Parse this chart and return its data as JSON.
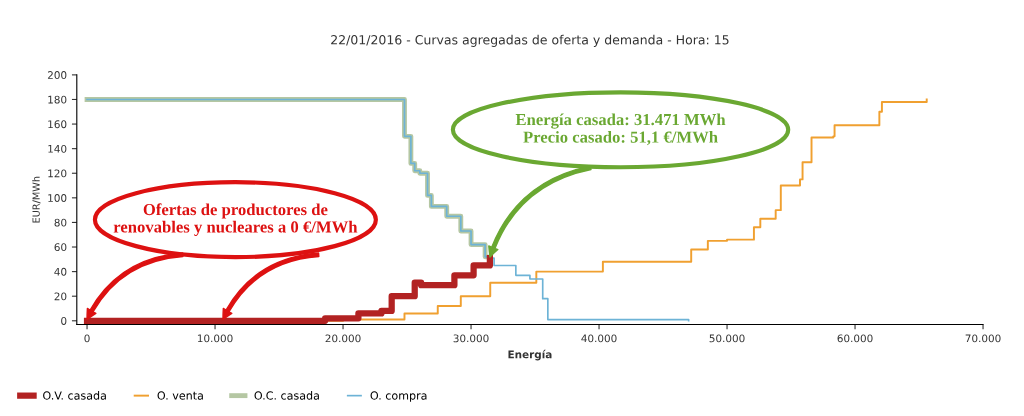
{
  "chart_data": {
    "type": "step",
    "title": "22/01/2016 - Curvas agregadas de oferta y demanda - Hora: 15",
    "xlabel": "Energía",
    "ylabel": "EUR/MWh",
    "xlim": [
      -800,
      70000
    ],
    "ylim": [
      -3,
      200
    ],
    "xticks": [
      0,
      {
        "value": 10000,
        "label": "10.000"
      },
      {
        "value": 20000,
        "label": "20.000"
      },
      {
        "value": 30000,
        "label": "30.000"
      },
      {
        "value": 40000,
        "label": "40.000"
      },
      {
        "value": 50000,
        "label": "50.000"
      },
      {
        "value": 60000,
        "label": "60.000"
      },
      {
        "value": 70000,
        "label": "70.000"
      }
    ],
    "yticks": [
      0,
      20,
      40,
      60,
      80,
      100,
      120,
      140,
      160,
      180,
      200
    ],
    "grid": false,
    "legend": "bottom left",
    "marker": "none",
    "line_style": "solid",
    "series": [
      {
        "name": "O. compra",
        "color": "#6db3d6",
        "x": [
          0,
          24800,
          24800,
          25300,
          25300,
          25600,
          26000,
          26600,
          26900,
          27900,
          28100,
          29200,
          30000,
          31100,
          31471,
          31800,
          33500,
          34600,
          35600,
          36000,
          47000
        ],
        "values": [
          180,
          180,
          150,
          150,
          128,
          122,
          120,
          102,
          93,
          93,
          85,
          73,
          62,
          52,
          51,
          45,
          37,
          34,
          18,
          1,
          0
        ]
      },
      {
        "name": "O.C. casada",
        "color": "#b5c7a3",
        "x": [
          0,
          24800,
          24800,
          25300,
          25300,
          25600,
          26000,
          26600,
          26900,
          27900,
          28100,
          29200,
          30000,
          31100,
          31471
        ],
        "values": [
          180,
          180,
          150,
          150,
          128,
          122,
          120,
          102,
          93,
          93,
          85,
          73,
          62,
          52,
          51
        ]
      },
      {
        "name": "O. venta",
        "color": "#f0a030",
        "x": [
          0,
          18000,
          20000,
          23300,
          24800,
          27400,
          29200,
          31500,
          35100,
          40300,
          47200,
          48500,
          50000,
          52100,
          52600,
          53800,
          54200,
          54600,
          55700,
          55900,
          56600,
          58300,
          58400,
          61700,
          61900,
          62100,
          65600
        ],
        "values": [
          0,
          0,
          1,
          1,
          6,
          12,
          20,
          31,
          40,
          48,
          58,
          65,
          66,
          76,
          83,
          90,
          110,
          110,
          115,
          129,
          149,
          150,
          159,
          159,
          170,
          178,
          180
        ]
      },
      {
        "name": "O.V. casada",
        "color": "#b22222",
        "x": [
          0,
          18000,
          18600,
          21200,
          23000,
          23800,
          24000,
          25600,
          26100,
          28700,
          30200,
          31471
        ],
        "values": [
          0,
          0,
          2,
          6,
          8,
          20,
          20,
          31,
          29,
          37,
          45,
          51
        ]
      }
    ],
    "annotations": [
      "Ofertas de productores de\nrenovables y nucleares a 0 €/MWh",
      "Energía casada: 31.471 MWh\nPrecio casado: 51,1 €/MWh"
    ]
  }
}
